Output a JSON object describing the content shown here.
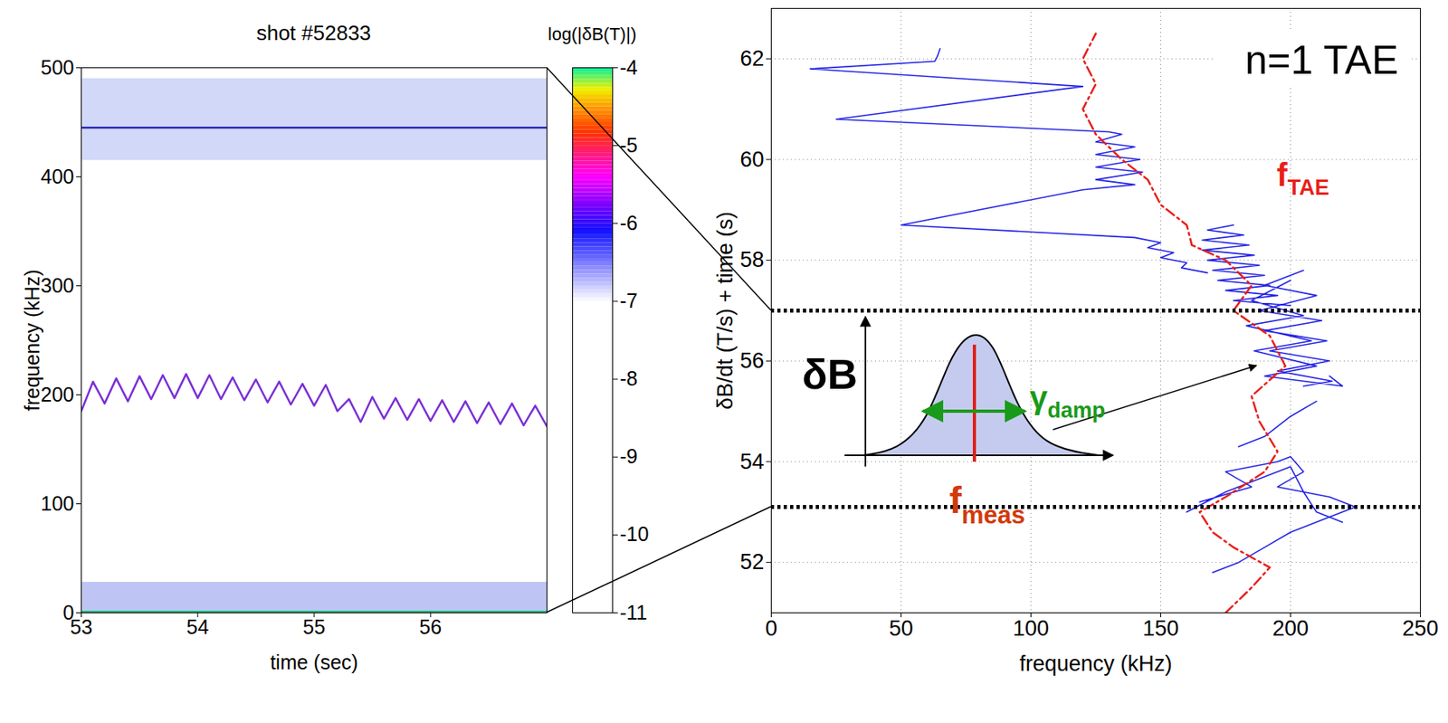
{
  "chart_data": [
    {
      "type": "spectrogram",
      "title": "shot #52833",
      "x_label": "time (sec)",
      "y_label": "frequency (kHz)",
      "xlim": [
        53,
        57
      ],
      "xticks": [
        53,
        54,
        55,
        56
      ],
      "ylim": [
        0,
        500
      ],
      "yticks": [
        0,
        100,
        200,
        300,
        400,
        500
      ],
      "grid": false,
      "series": [
        {
          "color": "#7b2fd6",
          "line_style": "solid",
          "x": [
            53.0,
            53.1,
            53.2,
            53.3,
            53.4,
            53.5,
            53.6,
            53.7,
            53.8,
            53.9,
            54.0,
            54.1,
            54.2,
            54.3,
            54.4,
            54.5,
            54.6,
            54.7,
            54.8,
            54.9,
            55.0,
            55.1,
            55.2,
            55.3,
            55.4,
            55.5,
            55.6,
            55.7,
            55.8,
            55.9,
            56.0,
            56.1,
            56.2,
            56.3,
            56.4,
            56.5,
            56.6,
            56.7,
            56.8,
            56.9,
            57.0
          ],
          "values": [
            185,
            212,
            192,
            215,
            194,
            217,
            196,
            218,
            197,
            219,
            197,
            218,
            196,
            216,
            195,
            214,
            193,
            212,
            191,
            210,
            190,
            209,
            185,
            196,
            175,
            198,
            178,
            197,
            177,
            196,
            176,
            195,
            175,
            194,
            174,
            193,
            173,
            192,
            172,
            190,
            171
          ]
        },
        {
          "color": "#2a2ab8",
          "line_style": "solid",
          "x": [
            53,
            57
          ],
          "values": [
            445,
            445
          ]
        },
        {
          "color": "#00c070",
          "line_style": "solid",
          "x": [
            53,
            57
          ],
          "values": [
            1,
            1
          ]
        }
      ],
      "bands": [
        {
          "lo": 415,
          "hi": 490,
          "color": "#9aa8f0"
        },
        {
          "lo": 0,
          "hi": 28,
          "color": "#6f7fe8"
        }
      ],
      "colorbar": {
        "label": "log(|δB(T)|)",
        "range": [
          -11,
          -4
        ],
        "ticks": [
          -4,
          -5,
          -6,
          -7,
          -8,
          -9,
          -10,
          -11
        ]
      }
    },
    {
      "type": "line",
      "title": "n=1 TAE",
      "x_label": "frequency (kHz)",
      "y_label": "δB/dt (T/s) + time (s)",
      "xlim": [
        0,
        250
      ],
      "xticks": [
        0,
        50,
        100,
        150,
        200,
        250
      ],
      "ylim": [
        51,
        63
      ],
      "yticks": [
        52,
        54,
        56,
        58,
        60,
        62
      ],
      "grid": true,
      "time_window": [
        53.1,
        57
      ],
      "series": [
        {
          "color": "#2323e6",
          "line_style": "solid",
          "x": [
            65,
            64,
            63,
            15,
            120,
            25,
            130,
            135,
            125,
            140,
            125,
            142,
            125,
            143,
            125,
            140,
            120,
            50,
            140,
            150,
            145,
            155,
            150,
            160,
            158,
            168,
            null,
            178,
            168,
            182,
            166,
            184,
            166,
            186,
            168,
            188,
            170,
            190,
            172,
            192,
            175,
            195,
            178,
            200,
            null,
            205,
            190,
            210,
            188,
            212,
            190,
            214,
            192,
            215,
            195,
            216,
            205,
            null,
            200,
            185,
            205,
            183,
            208,
            186,
            210,
            190,
            220,
            215,
            null,
            180,
            190,
            200,
            210,
            null,
            165,
            185,
            175,
            195,
            200,
            205,
            195,
            215,
            225,
            215,
            200,
            190,
            180,
            170,
            null,
            160,
            175,
            190,
            200,
            205,
            210,
            220
          ],
          "values": [
            62.2,
            62.05,
            61.95,
            61.8,
            61.45,
            60.8,
            60.55,
            60.5,
            60.35,
            60.25,
            60.1,
            60.0,
            59.85,
            59.75,
            59.6,
            59.5,
            59.4,
            58.7,
            58.45,
            58.35,
            58.25,
            58.15,
            58.05,
            57.95,
            57.85,
            57.75,
            null,
            58.7,
            58.6,
            58.5,
            58.4,
            58.3,
            58.2,
            58.1,
            58.0,
            57.9,
            57.8,
            57.7,
            57.6,
            57.5,
            57.4,
            57.3,
            57.2,
            57.1,
            null,
            57.8,
            57.5,
            57.3,
            57.0,
            56.8,
            56.6,
            56.4,
            56.2,
            56.0,
            55.8,
            55.6,
            55.5,
            null,
            57.6,
            57.2,
            56.9,
            56.7,
            56.4,
            56.2,
            55.9,
            55.7,
            55.5,
            55.7,
            null,
            54.3,
            54.5,
            54.9,
            55.2,
            null,
            53.2,
            53.5,
            53.8,
            54.0,
            54.1,
            53.8,
            53.5,
            53.3,
            53.1,
            52.9,
            52.6,
            52.3,
            52.0,
            51.8,
            null,
            53.0,
            53.4,
            53.7,
            53.9,
            53.4,
            53.0,
            52.8
          ]
        },
        {
          "color": "#e8201a",
          "line_style": "dashdot",
          "x": [
            175,
            185,
            192,
            178,
            170,
            165,
            175,
            190,
            195,
            188,
            185,
            198,
            192,
            178,
            185,
            175,
            162,
            160,
            150,
            145,
            135,
            125,
            120,
            125,
            120,
            125
          ],
          "values": [
            51,
            51.5,
            51.9,
            52.3,
            52.6,
            53.0,
            53.3,
            53.8,
            54.2,
            54.8,
            55.3,
            55.9,
            56.5,
            57.0,
            57.5,
            58.0,
            58.3,
            58.7,
            59.1,
            59.6,
            60.0,
            60.5,
            61.0,
            61.5,
            62.0,
            62.5
          ]
        }
      ],
      "curve_label": {
        "text": "f",
        "sub": "TAE",
        "color": "#e8201a"
      },
      "inset_labels": {
        "amplitude": {
          "text": "δB",
          "color": "#000000"
        },
        "width": {
          "text": "γ",
          "sub": "damp",
          "color": "#1a9a1a"
        },
        "frequency": {
          "text": "f",
          "sub": "meas",
          "color": "#d23a0a"
        }
      }
    }
  ]
}
